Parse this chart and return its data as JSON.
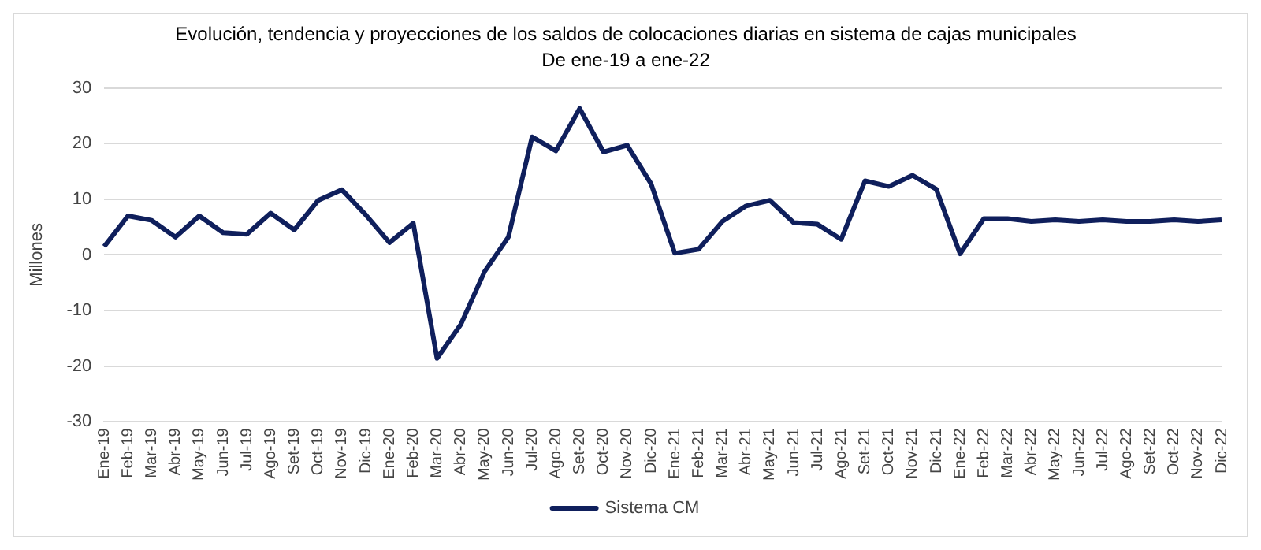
{
  "chart_data": {
    "type": "line",
    "title": "Evolución, tendencia y proyecciones de los saldos de colocaciones diarias en sistema de cajas municipales",
    "subtitle": "De ene-19 a ene-22",
    "ylabel": "Millones",
    "categories": [
      "Ene-19",
      "Feb-19",
      "Mar-19",
      "Abr-19",
      "May-19",
      "Jun-19",
      "Jul-19",
      "Ago-19",
      "Set-19",
      "Oct-19",
      "Nov-19",
      "Dic-19",
      "Ene-20",
      "Feb-20",
      "Mar-20",
      "Abr-20",
      "May-20",
      "Jun-20",
      "Jul-20",
      "Ago-20",
      "Set-20",
      "Oct-20",
      "Nov-20",
      "Dic-20",
      "Ene-21",
      "Feb-21",
      "Mar-21",
      "Abr-21",
      "May-21",
      "Jun-21",
      "Jul-21",
      "Ago-21",
      "Set-21",
      "Oct-21",
      "Nov-21",
      "Dic-21",
      "Ene-22",
      "Feb-22",
      "Mar-22",
      "Abr-22",
      "May-22",
      "Jun-22",
      "Jul-22",
      "Ago-22",
      "Set-22",
      "Oct-22",
      "Nov-22",
      "Dic-22"
    ],
    "series": [
      {
        "name": "Sistema CM",
        "color": "#0f1f5c",
        "values": [
          1.5,
          7,
          6.2,
          3.2,
          7,
          4,
          3.7,
          7.5,
          4.5,
          9.8,
          11.7,
          7.2,
          2.2,
          5.7,
          -18.6,
          -12.5,
          -3,
          3.2,
          21.2,
          18.7,
          26.3,
          18.5,
          19.7,
          12.8,
          0.3,
          1,
          6,
          8.8,
          9.8,
          5.8,
          5.5,
          2.8,
          13.3,
          12.3,
          14.3,
          11.8,
          0.2,
          6.5,
          6.5,
          6,
          6.3,
          6,
          6.3,
          6,
          6,
          6.3,
          6,
          6.3
        ]
      }
    ],
    "ylim": [
      -30,
      30
    ],
    "yticks": [
      -30,
      -20,
      -10,
      0,
      10,
      20,
      30
    ],
    "grid": "y",
    "legend": "bottom",
    "marker": "none",
    "line_style": "solid"
  }
}
